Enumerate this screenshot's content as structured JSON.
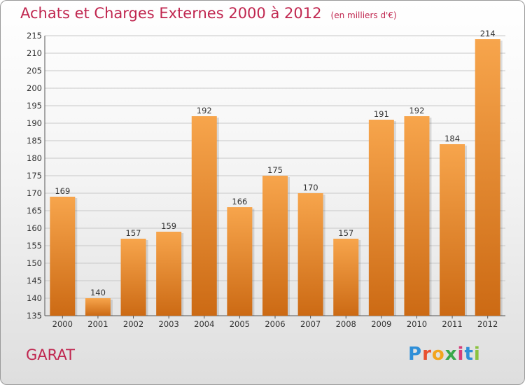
{
  "header": {
    "title": "Achats et Charges Externes 2000 à 2012",
    "unit": "(en milliers d'€)"
  },
  "footer": {
    "commune": "GARAT",
    "logo_letters": [
      "P",
      "r",
      "o",
      "x",
      "i",
      "t",
      "i"
    ],
    "logo_colors": [
      "#2f8fd8",
      "#e8502f",
      "#f2a51e",
      "#3aa84a",
      "#d63d7a",
      "#2f8fd8",
      "#8bc23f"
    ]
  },
  "colors": {
    "bar_top": "#f7a54c",
    "bar_bottom": "#cc6a14",
    "title": "#c0264f",
    "grid": "#c8c8c8"
  },
  "chart_data": {
    "type": "bar",
    "title": "Achats et Charges Externes 2000 à 2012",
    "subtitle": "(en milliers d'€)",
    "xlabel": "",
    "ylabel": "",
    "categories": [
      "2000",
      "2001",
      "2002",
      "2003",
      "2004",
      "2005",
      "2006",
      "2007",
      "2008",
      "2009",
      "2010",
      "2011",
      "2012"
    ],
    "values": [
      169,
      140,
      157,
      159,
      192,
      166,
      175,
      170,
      157,
      191,
      192,
      184,
      214
    ],
    "ylim": [
      135,
      215
    ],
    "yticks": [
      135,
      140,
      145,
      150,
      155,
      160,
      165,
      170,
      175,
      180,
      185,
      190,
      195,
      200,
      205,
      210,
      215
    ],
    "grid": true,
    "legend": "none"
  }
}
